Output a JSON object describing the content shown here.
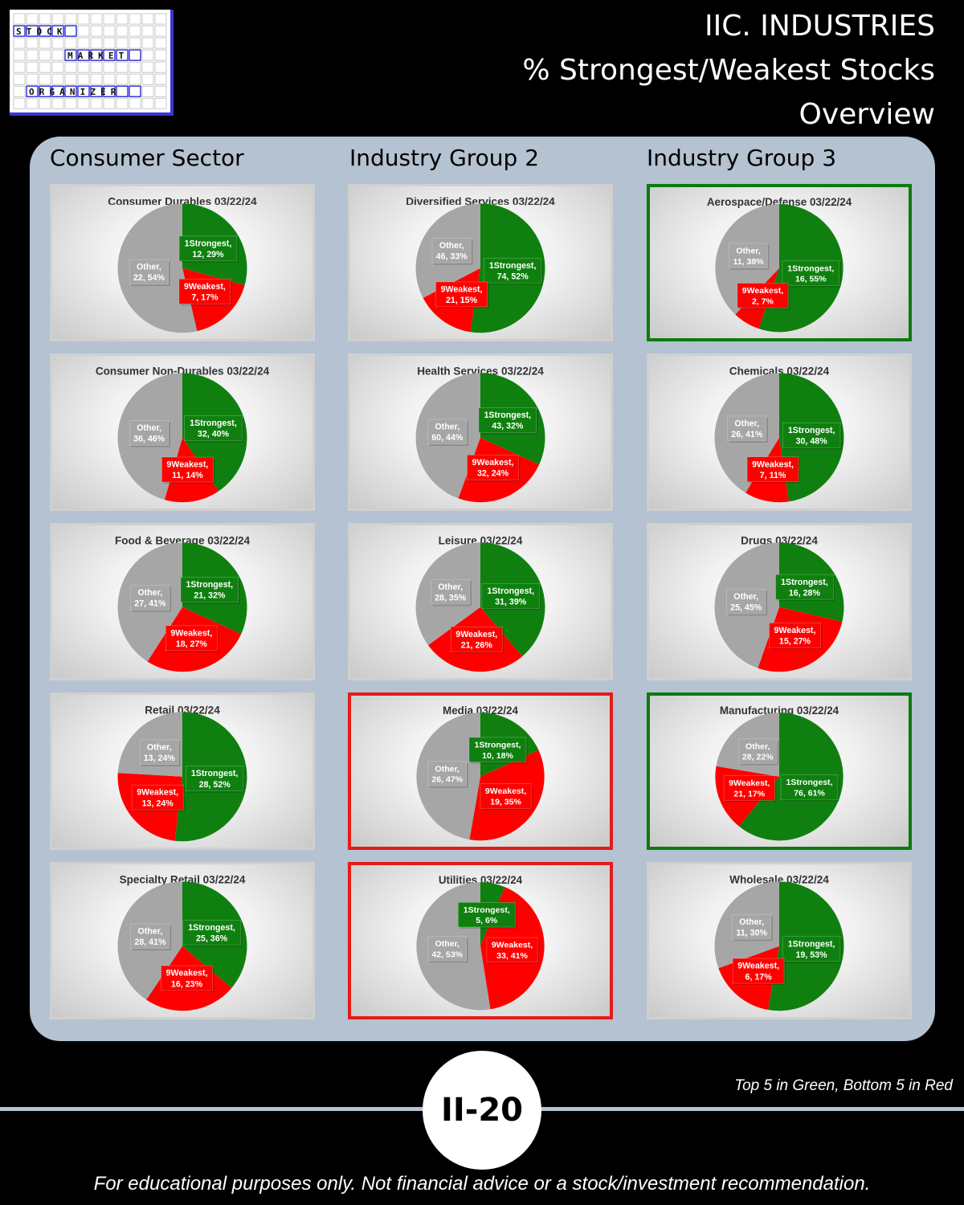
{
  "logo": {
    "words": [
      "STOCK",
      "MARKET",
      "ORGANIZER"
    ],
    "accent": "#3a37d6"
  },
  "title": {
    "line1": "IIC. INDUSTRIES",
    "line2": "% Strongest/Weakest Stocks",
    "line3": "Overview"
  },
  "columns": [
    {
      "heading": "Consumer Sector"
    },
    {
      "heading": "Industry Group 2"
    },
    {
      "heading": "Industry Group 3"
    }
  ],
  "colors": {
    "strongest": "#0f800f",
    "weakest": "#ff0000",
    "other": "#a6a6a6",
    "top_highlight": "#0e7a0e",
    "bottom_highlight": "#e51b1b"
  },
  "chart_data": [
    {
      "type": "pie",
      "title": "Consumer Durables 03/22/24",
      "col": 0,
      "row": 0,
      "highlight": "none",
      "slices": [
        {
          "label": "1Strongest",
          "count": 12,
          "pct": "29%"
        },
        {
          "label": "9Weakest",
          "count": 7,
          "pct": "17%"
        },
        {
          "label": "Other",
          "count": 22,
          "pct": "54%"
        }
      ]
    },
    {
      "type": "pie",
      "title": "Consumer Non-Durables 03/22/24",
      "col": 0,
      "row": 1,
      "highlight": "none",
      "slices": [
        {
          "label": "1Strongest",
          "count": 32,
          "pct": "40%"
        },
        {
          "label": "9Weakest",
          "count": 11,
          "pct": "14%"
        },
        {
          "label": "Other",
          "count": 36,
          "pct": "46%"
        }
      ]
    },
    {
      "type": "pie",
      "title": "Food & Beverage 03/22/24",
      "col": 0,
      "row": 2,
      "highlight": "none",
      "slices": [
        {
          "label": "1Strongest",
          "count": 21,
          "pct": "32%"
        },
        {
          "label": "9Weakest",
          "count": 18,
          "pct": "27%"
        },
        {
          "label": "Other",
          "count": 27,
          "pct": "41%"
        }
      ]
    },
    {
      "type": "pie",
      "title": "Retail 03/22/24",
      "col": 0,
      "row": 3,
      "highlight": "none",
      "slices": [
        {
          "label": "1Strongest",
          "count": 28,
          "pct": "52%"
        },
        {
          "label": "9Weakest",
          "count": 13,
          "pct": "24%"
        },
        {
          "label": "Other",
          "count": 13,
          "pct": "24%"
        }
      ]
    },
    {
      "type": "pie",
      "title": "Specialty Retail 03/22/24",
      "col": 0,
      "row": 4,
      "highlight": "none",
      "slices": [
        {
          "label": "1Strongest",
          "count": 25,
          "pct": "36%"
        },
        {
          "label": "9Weakest",
          "count": 16,
          "pct": "23%"
        },
        {
          "label": "Other",
          "count": 28,
          "pct": "41%"
        }
      ]
    },
    {
      "type": "pie",
      "title": "Diversified Services 03/22/24",
      "col": 1,
      "row": 0,
      "highlight": "none",
      "slices": [
        {
          "label": "1Strongest",
          "count": 74,
          "pct": "52%"
        },
        {
          "label": "9Weakest",
          "count": 21,
          "pct": "15%"
        },
        {
          "label": "Other",
          "count": 46,
          "pct": "33%"
        }
      ]
    },
    {
      "type": "pie",
      "title": "Health Services 03/22/24",
      "col": 1,
      "row": 1,
      "highlight": "none",
      "slices": [
        {
          "label": "1Strongest",
          "count": 43,
          "pct": "32%"
        },
        {
          "label": "9Weakest",
          "count": 32,
          "pct": "24%"
        },
        {
          "label": "Other",
          "count": 60,
          "pct": "44%"
        }
      ]
    },
    {
      "type": "pie",
      "title": "Leisure 03/22/24",
      "col": 1,
      "row": 2,
      "highlight": "none",
      "slices": [
        {
          "label": "1Strongest",
          "count": 31,
          "pct": "39%"
        },
        {
          "label": "9Weakest",
          "count": 21,
          "pct": "26%"
        },
        {
          "label": "Other",
          "count": 28,
          "pct": "35%"
        }
      ]
    },
    {
      "type": "pie",
      "title": "Media 03/22/24",
      "col": 1,
      "row": 3,
      "highlight": "red",
      "slices": [
        {
          "label": "1Strongest",
          "count": 10,
          "pct": "18%"
        },
        {
          "label": "9Weakest",
          "count": 19,
          "pct": "35%"
        },
        {
          "label": "Other",
          "count": 26,
          "pct": "47%"
        }
      ]
    },
    {
      "type": "pie",
      "title": "Utilities 03/22/24",
      "col": 1,
      "row": 4,
      "highlight": "red",
      "slices": [
        {
          "label": "1Strongest",
          "count": 5,
          "pct": "6%"
        },
        {
          "label": "9Weakest",
          "count": 33,
          "pct": "41%"
        },
        {
          "label": "Other",
          "count": 42,
          "pct": "53%"
        }
      ]
    },
    {
      "type": "pie",
      "title": "Aerospace/Defense 03/22/24",
      "col": 2,
      "row": 0,
      "highlight": "green",
      "slices": [
        {
          "label": "1Strongest",
          "count": 16,
          "pct": "55%"
        },
        {
          "label": "9Weakest",
          "count": 2,
          "pct": "7%"
        },
        {
          "label": "Other",
          "count": 11,
          "pct": "38%"
        }
      ]
    },
    {
      "type": "pie",
      "title": "Chemicals 03/22/24",
      "col": 2,
      "row": 1,
      "highlight": "none",
      "slices": [
        {
          "label": "1Strongest",
          "count": 30,
          "pct": "48%"
        },
        {
          "label": "9Weakest",
          "count": 7,
          "pct": "11%"
        },
        {
          "label": "Other",
          "count": 26,
          "pct": "41%"
        }
      ]
    },
    {
      "type": "pie",
      "title": "Drugs 03/22/24",
      "col": 2,
      "row": 2,
      "highlight": "none",
      "slices": [
        {
          "label": "1Strongest",
          "count": 16,
          "pct": "28%"
        },
        {
          "label": "9Weakest",
          "count": 15,
          "pct": "27%"
        },
        {
          "label": "Other",
          "count": 25,
          "pct": "45%"
        }
      ]
    },
    {
      "type": "pie",
      "title": "Manufacturing 03/22/24",
      "col": 2,
      "row": 3,
      "highlight": "green",
      "slices": [
        {
          "label": "1Strongest",
          "count": 76,
          "pct": "61%"
        },
        {
          "label": "9Weakest",
          "count": 21,
          "pct": "17%"
        },
        {
          "label": "Other",
          "count": 28,
          "pct": "22%"
        }
      ]
    },
    {
      "type": "pie",
      "title": "Wholesale 03/22/24",
      "col": 2,
      "row": 4,
      "highlight": "none",
      "slices": [
        {
          "label": "1Strongest",
          "count": 19,
          "pct": "53%"
        },
        {
          "label": "9Weakest",
          "count": 6,
          "pct": "17%"
        },
        {
          "label": "Other",
          "count": 11,
          "pct": "30%"
        }
      ]
    }
  ],
  "footer": {
    "legend_note": "Top 5 in Green, Bottom 5 in Red",
    "page_number": "II-20",
    "disclaimer": "For educational purposes only. Not financial advice or a stock/investment recommendation."
  }
}
